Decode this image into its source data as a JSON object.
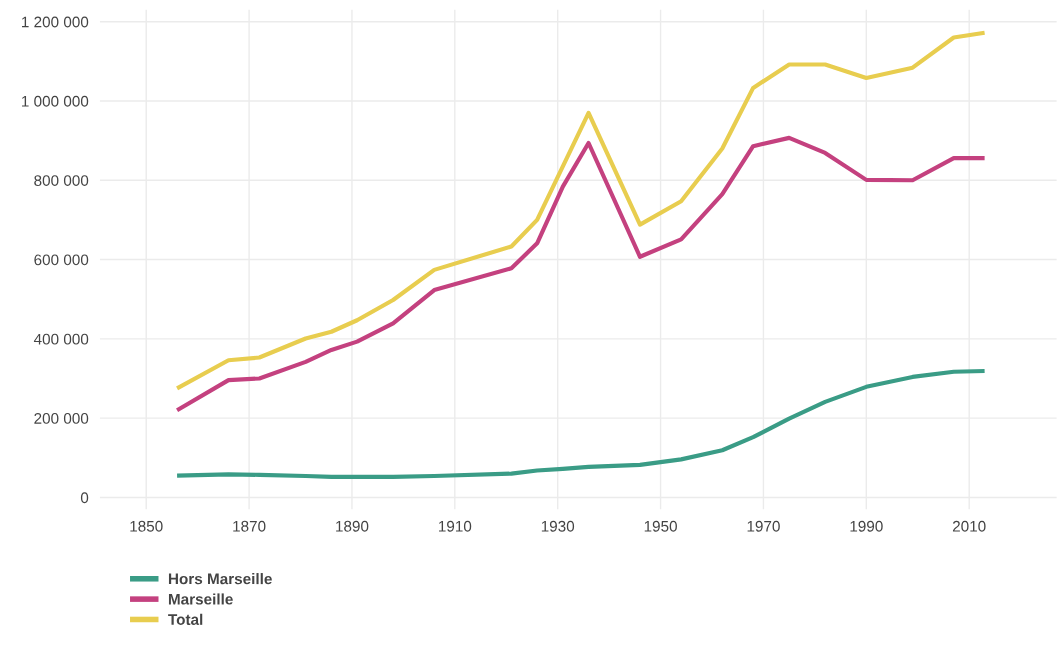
{
  "chart_data": {
    "type": "line",
    "x": [
      1856,
      1866,
      1872,
      1881,
      1886,
      1891,
      1898,
      1906,
      1921,
      1926,
      1931,
      1936,
      1946,
      1954,
      1962,
      1968,
      1975,
      1982,
      1990,
      1999,
      2007,
      2013
    ],
    "series": [
      {
        "name": "Hors Marseille",
        "color": "#3a9c86",
        "values": [
          55000,
          58000,
          57000,
          54000,
          52000,
          52000,
          52000,
          54000,
          60000,
          68000,
          72000,
          77000,
          82000,
          96000,
          119000,
          152000,
          199000,
          241000,
          279000,
          304000,
          317000,
          319000
        ]
      },
      {
        "name": "Marseille",
        "color": "#c4417f",
        "values": [
          220000,
          296000,
          300000,
          342000,
          372000,
          393000,
          439000,
          523000,
          578000,
          641000,
          784000,
          894000,
          607000,
          651000,
          765000,
          886000,
          907000,
          869000,
          801000,
          800000,
          856000,
          856000
        ]
      },
      {
        "name": "Total",
        "color": "#e8cd4f",
        "values": [
          275000,
          346000,
          353000,
          401000,
          418000,
          447000,
          498000,
          574000,
          633000,
          700000,
          835000,
          970000,
          688000,
          747000,
          880000,
          1033000,
          1092000,
          1092000,
          1058000,
          1084000,
          1160000,
          1172000
        ]
      }
    ],
    "xlim": [
      1841,
      2027
    ],
    "xticks": [
      1850,
      1870,
      1890,
      1910,
      1930,
      1950,
      1970,
      1990,
      2010
    ],
    "ylim": [
      -30000,
      1230000
    ],
    "yticks": [
      0,
      {
        "value": 200000,
        "label": "200 000"
      },
      {
        "value": 400000,
        "label": "400 000"
      },
      {
        "value": 600000,
        "label": "600 000"
      },
      {
        "value": 800000,
        "label": "800 000"
      },
      {
        "value": 1000000,
        "label": "1 000 000"
      },
      {
        "value": 1200000,
        "label": "1 200 000"
      }
    ],
    "grid": true,
    "legend": "bottom left",
    "marker": "none",
    "line_style": "solid"
  }
}
